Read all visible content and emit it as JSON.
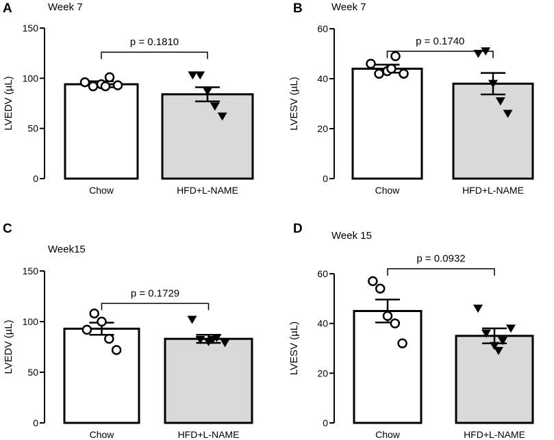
{
  "panels": {
    "a": {
      "letter": "A",
      "title": "Week 7"
    },
    "b": {
      "letter": "B",
      "title": "Week 7"
    },
    "c": {
      "letter": "C",
      "title": "Week15"
    },
    "d": {
      "letter": "D",
      "title": "Week 15"
    }
  },
  "colors": {
    "chow_fill": "#ffffff",
    "hfd_fill": "#d9d9d9",
    "stroke": "#000000"
  },
  "chart_data": [
    {
      "type": "bar",
      "panel": "A",
      "title": "Week 7",
      "xlabel": "",
      "ylabel": "LVEDV (µL)",
      "ylim": [
        0,
        150
      ],
      "yticks": [
        0,
        50,
        100,
        150
      ],
      "categories": [
        "Chow",
        "HFD+L-NAME"
      ],
      "values": [
        94,
        84
      ],
      "sem": [
        3,
        7
      ],
      "points": [
        [
          96,
          92,
          94,
          101,
          93,
          92
        ],
        [
          103,
          103,
          87,
          72,
          62
        ]
      ],
      "markers": [
        "circle-open",
        "triangle-down-filled"
      ],
      "annotation": "p = 0.1810",
      "bracket_y": 126
    },
    {
      "type": "bar",
      "panel": "B",
      "title": "Week 7",
      "xlabel": "",
      "ylabel": "LVESV (µL)",
      "ylim": [
        0,
        60
      ],
      "yticks": [
        0,
        20,
        40,
        60
      ],
      "categories": [
        "Chow",
        "HFD+L-NAME"
      ],
      "values": [
        44,
        38
      ],
      "sem": [
        1.6,
        4.3
      ],
      "points": [
        [
          46,
          42,
          43,
          49,
          42,
          44
        ],
        [
          50,
          51,
          38,
          31,
          26
        ]
      ],
      "markers": [
        "circle-open",
        "triangle-down-filled"
      ],
      "annotation": "p = 0.1740",
      "bracket_y": 51
    },
    {
      "type": "bar",
      "panel": "C",
      "title": "Week15",
      "xlabel": "",
      "ylabel": "LVEDV (µL)",
      "ylim": [
        0,
        150
      ],
      "yticks": [
        0,
        50,
        100,
        150
      ],
      "categories": [
        "Chow",
        "HFD+L-NAME"
      ],
      "values": [
        93,
        83
      ],
      "sem": [
        6,
        4
      ],
      "points": [
        [
          92,
          108,
          100,
          83,
          72
        ],
        [
          102,
          82,
          80,
          84,
          79,
          82
        ]
      ],
      "markers": [
        "circle-open",
        "triangle-down-filled"
      ],
      "annotation": "p = 0.1729",
      "bracket_y": 118
    },
    {
      "type": "bar",
      "panel": "D",
      "title": "Week 15",
      "xlabel": "",
      "ylabel": "LVESV (µL)",
      "ylim": [
        0,
        60
      ],
      "yticks": [
        0,
        20,
        40,
        60
      ],
      "categories": [
        "Chow",
        "HFD+L-NAME"
      ],
      "values": [
        45,
        35
      ],
      "sem": [
        4.6,
        3
      ],
      "points": [
        [
          57,
          54,
          43,
          40,
          32
        ],
        [
          46,
          36,
          31,
          33,
          38,
          29
        ]
      ],
      "markers": [
        "circle-open",
        "triangle-down-filled"
      ],
      "annotation": "p = 0.0932",
      "bracket_y": 62
    }
  ]
}
